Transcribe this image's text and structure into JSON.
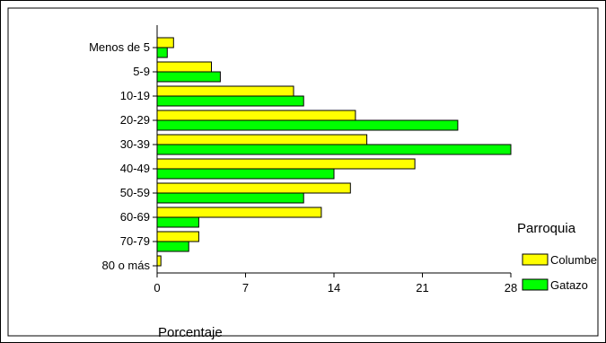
{
  "chart_data": {
    "type": "bar",
    "orientation": "horizontal",
    "title": "",
    "xlabel": "Porcentaje",
    "ylabel": "",
    "categories": [
      "Menos de 5",
      "5-9",
      "10-19",
      "20-29",
      "30-39",
      "40-49",
      "50-59",
      "60-69",
      "70-79",
      "80 o más"
    ],
    "xlim": [
      0,
      28
    ],
    "xticks": [
      "0",
      "7",
      "14",
      "21",
      "28"
    ],
    "legend": {
      "title": "Parroquia",
      "position": "right"
    },
    "series": [
      {
        "name": "Columbe",
        "color": "#ffff00",
        "values": [
          1.3,
          4.3,
          10.8,
          15.7,
          16.6,
          20.4,
          15.3,
          13.0,
          3.3,
          0.3
        ]
      },
      {
        "name": "Gatazo",
        "color": "#00ff00",
        "values": [
          0.8,
          5.0,
          11.6,
          23.8,
          28.0,
          14.0,
          11.6,
          3.3,
          2.5,
          0.0
        ]
      }
    ],
    "grid": false
  }
}
